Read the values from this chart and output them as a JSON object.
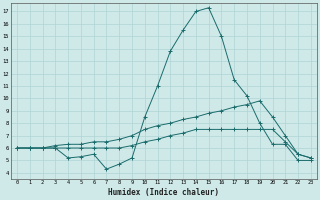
{
  "xlabel": "Humidex (Indice chaleur)",
  "xlim": [
    -0.5,
    23.5
  ],
  "ylim": [
    3.5,
    17.7
  ],
  "yticks": [
    4,
    5,
    6,
    7,
    8,
    9,
    10,
    11,
    12,
    13,
    14,
    15,
    16,
    17
  ],
  "xticks": [
    0,
    1,
    2,
    3,
    4,
    5,
    6,
    7,
    8,
    9,
    10,
    11,
    12,
    13,
    14,
    15,
    16,
    17,
    18,
    19,
    20,
    21,
    22,
    23
  ],
  "bg_color": "#cfe9e9",
  "line_color": "#1a6b6b",
  "grid_color": "#b0d4d4",
  "lines": [
    {
      "x": [
        0,
        1,
        2,
        3,
        4,
        5,
        6,
        7,
        8,
        9,
        10,
        11,
        12,
        13,
        14,
        15,
        16,
        17,
        18,
        19,
        20,
        21,
        22,
        23
      ],
      "y": [
        6.0,
        6.0,
        6.0,
        6.0,
        5.2,
        5.3,
        5.5,
        4.3,
        4.7,
        5.2,
        8.5,
        11.0,
        13.8,
        15.5,
        17.0,
        17.3,
        15.0,
        11.5,
        10.2,
        8.0,
        6.3,
        6.3,
        5.0,
        5.0
      ]
    },
    {
      "x": [
        0,
        1,
        2,
        3,
        4,
        5,
        6,
        7,
        8,
        9,
        10,
        11,
        12,
        13,
        14,
        15,
        16,
        17,
        18,
        19,
        20,
        21,
        22,
        23
      ],
      "y": [
        6.0,
        6.0,
        6.0,
        6.2,
        6.3,
        6.3,
        6.5,
        6.5,
        6.7,
        7.0,
        7.5,
        7.8,
        8.0,
        8.3,
        8.5,
        8.8,
        9.0,
        9.3,
        9.5,
        9.8,
        8.5,
        7.0,
        5.5,
        5.2
      ]
    },
    {
      "x": [
        0,
        1,
        2,
        3,
        4,
        5,
        6,
        7,
        8,
        9,
        10,
        11,
        12,
        13,
        14,
        15,
        16,
        17,
        18,
        19,
        20,
        21,
        22,
        23
      ],
      "y": [
        6.0,
        6.0,
        6.0,
        6.0,
        6.0,
        6.0,
        6.0,
        6.0,
        6.0,
        6.2,
        6.5,
        6.7,
        7.0,
        7.2,
        7.5,
        7.5,
        7.5,
        7.5,
        7.5,
        7.5,
        7.5,
        6.5,
        5.5,
        5.2
      ]
    }
  ]
}
